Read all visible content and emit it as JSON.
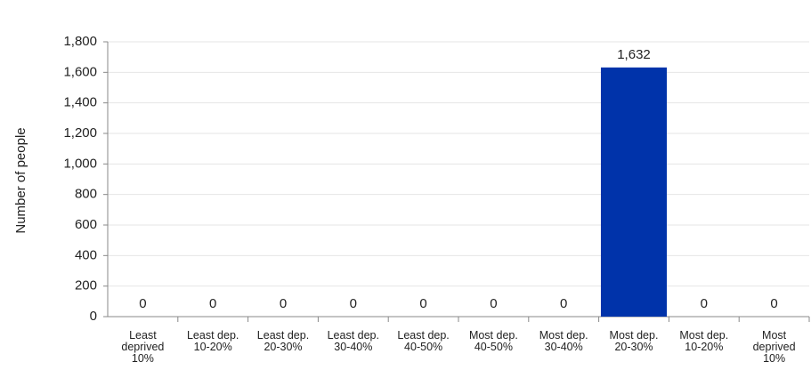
{
  "chart_data": {
    "type": "bar",
    "y_label": "Number of people",
    "categories": [
      "Least deprived 10%",
      "Least dep. 10-20%",
      "Least dep. 20-30%",
      "Least dep. 30-40%",
      "Least dep. 40-50%",
      "Most dep. 40-50%",
      "Most dep. 30-40%",
      "Most dep. 20-30%",
      "Most dep. 10-20%",
      "Most deprived 10%"
    ],
    "values": [
      0,
      0,
      0,
      0,
      0,
      0,
      0,
      1632,
      0,
      0
    ],
    "value_labels": [
      "0",
      "0",
      "0",
      "0",
      "0",
      "0",
      "0",
      "1,632",
      "0",
      "0"
    ],
    "color": "#0033aa",
    "ylim": [
      0,
      1800
    ],
    "yticks": [
      0,
      200,
      400,
      600,
      800,
      {
        "value": 1000,
        "label": "1,000"
      },
      {
        "value": 1200,
        "label": "1,200"
      },
      {
        "value": 1400,
        "label": "1,400"
      },
      {
        "value": 1600,
        "label": "1,600"
      },
      {
        "value": 1800,
        "label": "1,800"
      }
    ],
    "grid": true
  }
}
